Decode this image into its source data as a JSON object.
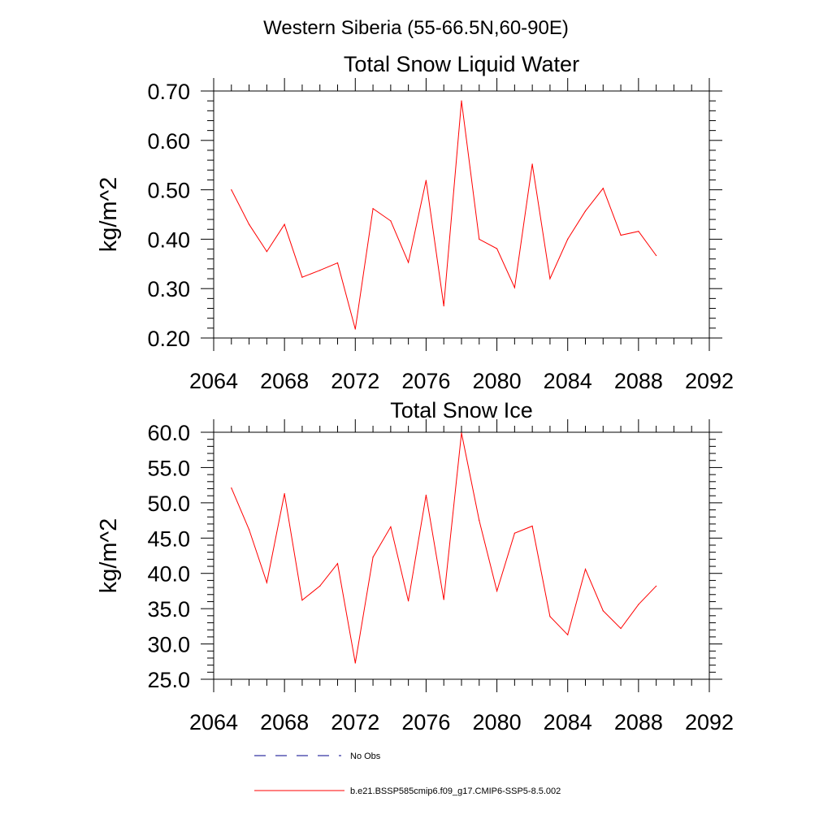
{
  "suptitle": "Western Siberia (55-66.5N,60-90E)",
  "colors": {
    "model": "#ff0000",
    "obs": "#00008b",
    "axis": "#000000"
  },
  "legend": {
    "obs_label": "No Obs",
    "model_label": "b.e21.BSSP585cmip6.f09_g17.CMIP6-SSP5-8.5.002",
    "placement": "bottom"
  },
  "chart_data": [
    {
      "type": "line",
      "title": "Total Snow Liquid Water",
      "xlabel": "",
      "ylabel": "kg/m^2",
      "xlim": [
        2064,
        2092
      ],
      "ylim": [
        0.2,
        0.7
      ],
      "xticks": [
        "2064",
        "2068",
        "2072",
        "2076",
        "2080",
        "2084",
        "2088",
        "2092"
      ],
      "yticks": [
        "0.20",
        "0.30",
        "0.40",
        "0.50",
        "0.60",
        "0.70"
      ],
      "grid": false,
      "series": [
        {
          "name": "b.e21.BSSP585cmip6.f09_g17.CMIP6-SSP5-8.5.002",
          "x": [
            2065,
            2066,
            2067,
            2068,
            2069,
            2070,
            2071,
            2072,
            2073,
            2074,
            2075,
            2076,
            2077,
            2078,
            2079,
            2080,
            2081,
            2082,
            2083,
            2084,
            2085,
            2086,
            2087,
            2088,
            2089
          ],
          "values": [
            0.5,
            0.43,
            0.375,
            0.43,
            0.323,
            0.337,
            0.352,
            0.218,
            0.462,
            0.437,
            0.353,
            0.519,
            0.265,
            0.68,
            0.4,
            0.381,
            0.302,
            0.552,
            0.32,
            0.4,
            0.457,
            0.503,
            0.408,
            0.416,
            0.367
          ]
        }
      ]
    },
    {
      "type": "line",
      "title": "Total Snow Ice",
      "xlabel": "",
      "ylabel": "kg/m^2",
      "xlim": [
        2064,
        2092
      ],
      "ylim": [
        25.0,
        60.0
      ],
      "xticks": [
        "2064",
        "2068",
        "2072",
        "2076",
        "2080",
        "2084",
        "2088",
        "2092"
      ],
      "yticks": [
        "25.0",
        "30.0",
        "35.0",
        "40.0",
        "45.0",
        "50.0",
        "55.0",
        "60.0"
      ],
      "grid": false,
      "series": [
        {
          "name": "b.e21.BSSP585cmip6.f09_g17.CMIP6-SSP5-8.5.002",
          "x": [
            2065,
            2066,
            2067,
            2068,
            2069,
            2070,
            2071,
            2072,
            2073,
            2074,
            2075,
            2076,
            2077,
            2078,
            2079,
            2080,
            2081,
            2082,
            2083,
            2084,
            2085,
            2086,
            2087,
            2088,
            2089
          ],
          "values": [
            52.1,
            46.2,
            38.7,
            51.3,
            36.2,
            38.2,
            41.4,
            27.3,
            42.3,
            46.6,
            36.1,
            51.1,
            36.3,
            59.9,
            47.5,
            37.5,
            45.7,
            46.7,
            33.9,
            31.3,
            40.6,
            34.7,
            32.2,
            35.6,
            38.2
          ]
        }
      ]
    }
  ]
}
